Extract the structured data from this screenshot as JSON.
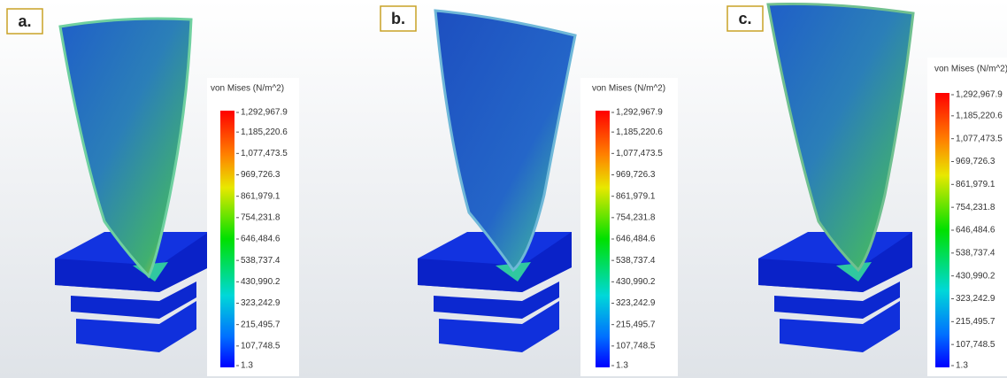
{
  "panels": [
    {
      "label": "a.",
      "legend_title": "von Mises (N/m^2)",
      "ticks": [
        "1,292,967.9",
        "1,185,220.6",
        "1,077,473.5",
        "969,726.3",
        "861,979.1",
        "754,231.8",
        "646,484.6",
        "538,737.4",
        "430,990.2",
        "323,242.9",
        "215,495.7",
        "107,748.5",
        "1.3"
      ]
    },
    {
      "label": "b.",
      "legend_title": "von Mises (N/m^2)",
      "ticks": [
        "1,292,967.9",
        "1,185,220.6",
        "1,077,473.5",
        "969,726.3",
        "861,979.1",
        "754,231.8",
        "646,484.6",
        "538,737.4",
        "430,990.2",
        "323,242.9",
        "215,495.7",
        "107,748.5",
        "1.3"
      ]
    },
    {
      "label": "c.",
      "legend_title": "von Mises (N/m^2)",
      "ticks": [
        "1,292,967.9",
        "1,185,220.6",
        "1,077,473.5",
        "969,726.3",
        "861,979.1",
        "754,231.8",
        "646,484.6",
        "538,737.4",
        "430,990.2",
        "323,242.9",
        "215,495.7",
        "107,748.5",
        "1.3"
      ]
    }
  ]
}
